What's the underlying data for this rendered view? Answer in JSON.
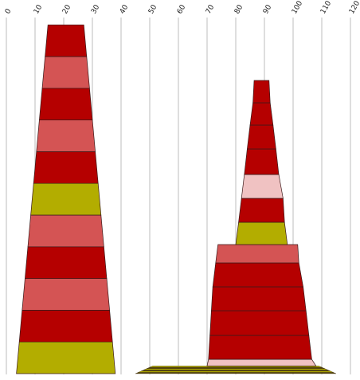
{
  "chart_data": {
    "type": "pyramid",
    "x_axis": {
      "min": 0,
      "max": 120,
      "ticks": [
        0,
        10,
        20,
        30,
        40,
        50,
        60,
        70,
        80,
        90,
        100,
        110,
        120
      ],
      "position": "top",
      "tick_rotation": -60
    },
    "grid": true,
    "colors": {
      "red": "#b50000",
      "salmon": "#d45454",
      "olive": "#b3ad00",
      "pink": "#f0c2c2",
      "dark": "#5a4a10"
    },
    "stacks": [
      {
        "name": "",
        "bands": [
          {
            "x_start": 3.5,
            "x_end": 38,
            "color": "olive"
          },
          {
            "x_start": 4.5,
            "x_end": 37,
            "color": "red"
          },
          {
            "x_start": 5.5,
            "x_end": 36,
            "color": "salmon"
          },
          {
            "x_start": 6.5,
            "x_end": 35,
            "color": "red"
          },
          {
            "x_start": 7.5,
            "x_end": 34,
            "color": "salmon"
          },
          {
            "x_start": 8.5,
            "x_end": 33,
            "color": "olive"
          },
          {
            "x_start": 9.5,
            "x_end": 32,
            "color": "red"
          },
          {
            "x_start": 10.5,
            "x_end": 31,
            "color": "salmon"
          },
          {
            "x_start": 11.5,
            "x_end": 30,
            "color": "red"
          },
          {
            "x_start": 12.5,
            "x_end": 29,
            "color": "salmon"
          },
          {
            "x_start": 13.5,
            "x_end": 28,
            "color": "red"
          }
        ]
      },
      {
        "name": "",
        "base_bands": [
          {
            "x_start": 45,
            "x_end": 115,
            "color": "dark"
          },
          {
            "x_start": 46,
            "x_end": 114,
            "color": "olive"
          },
          {
            "x_start": 47,
            "x_end": 113,
            "color": "dark"
          },
          {
            "x_start": 48,
            "x_end": 112,
            "color": "olive"
          },
          {
            "x_start": 49,
            "x_end": 111,
            "color": "dark"
          },
          {
            "x_start": 50,
            "x_end": 110,
            "color": "olive"
          },
          {
            "x_start": 70,
            "x_end": 108,
            "color": "pink"
          }
        ],
        "bands": [
          {
            "x_start": 70.5,
            "x_end": 106.5,
            "color": "red"
          },
          {
            "x_start": 71,
            "x_end": 105.5,
            "color": "red"
          },
          {
            "x_start": 71.5,
            "x_end": 104.5,
            "color": "red"
          },
          {
            "x_start": 72,
            "x_end": 103.5,
            "color": "red"
          },
          {
            "x_start": 73,
            "x_end": 102,
            "color": "salmon"
          },
          {
            "x_start": 80,
            "x_end": 98,
            "color": "olive"
          },
          {
            "x_start": 81,
            "x_end": 97,
            "color": "red"
          },
          {
            "x_start": 82,
            "x_end": 96.5,
            "color": "pink"
          },
          {
            "x_start": 83,
            "x_end": 95,
            "color": "red"
          },
          {
            "x_start": 84,
            "x_end": 94,
            "color": "red"
          },
          {
            "x_start": 85,
            "x_end": 93,
            "color": "red"
          },
          {
            "x_start": 86,
            "x_end": 92,
            "color": "red"
          }
        ]
      }
    ]
  }
}
